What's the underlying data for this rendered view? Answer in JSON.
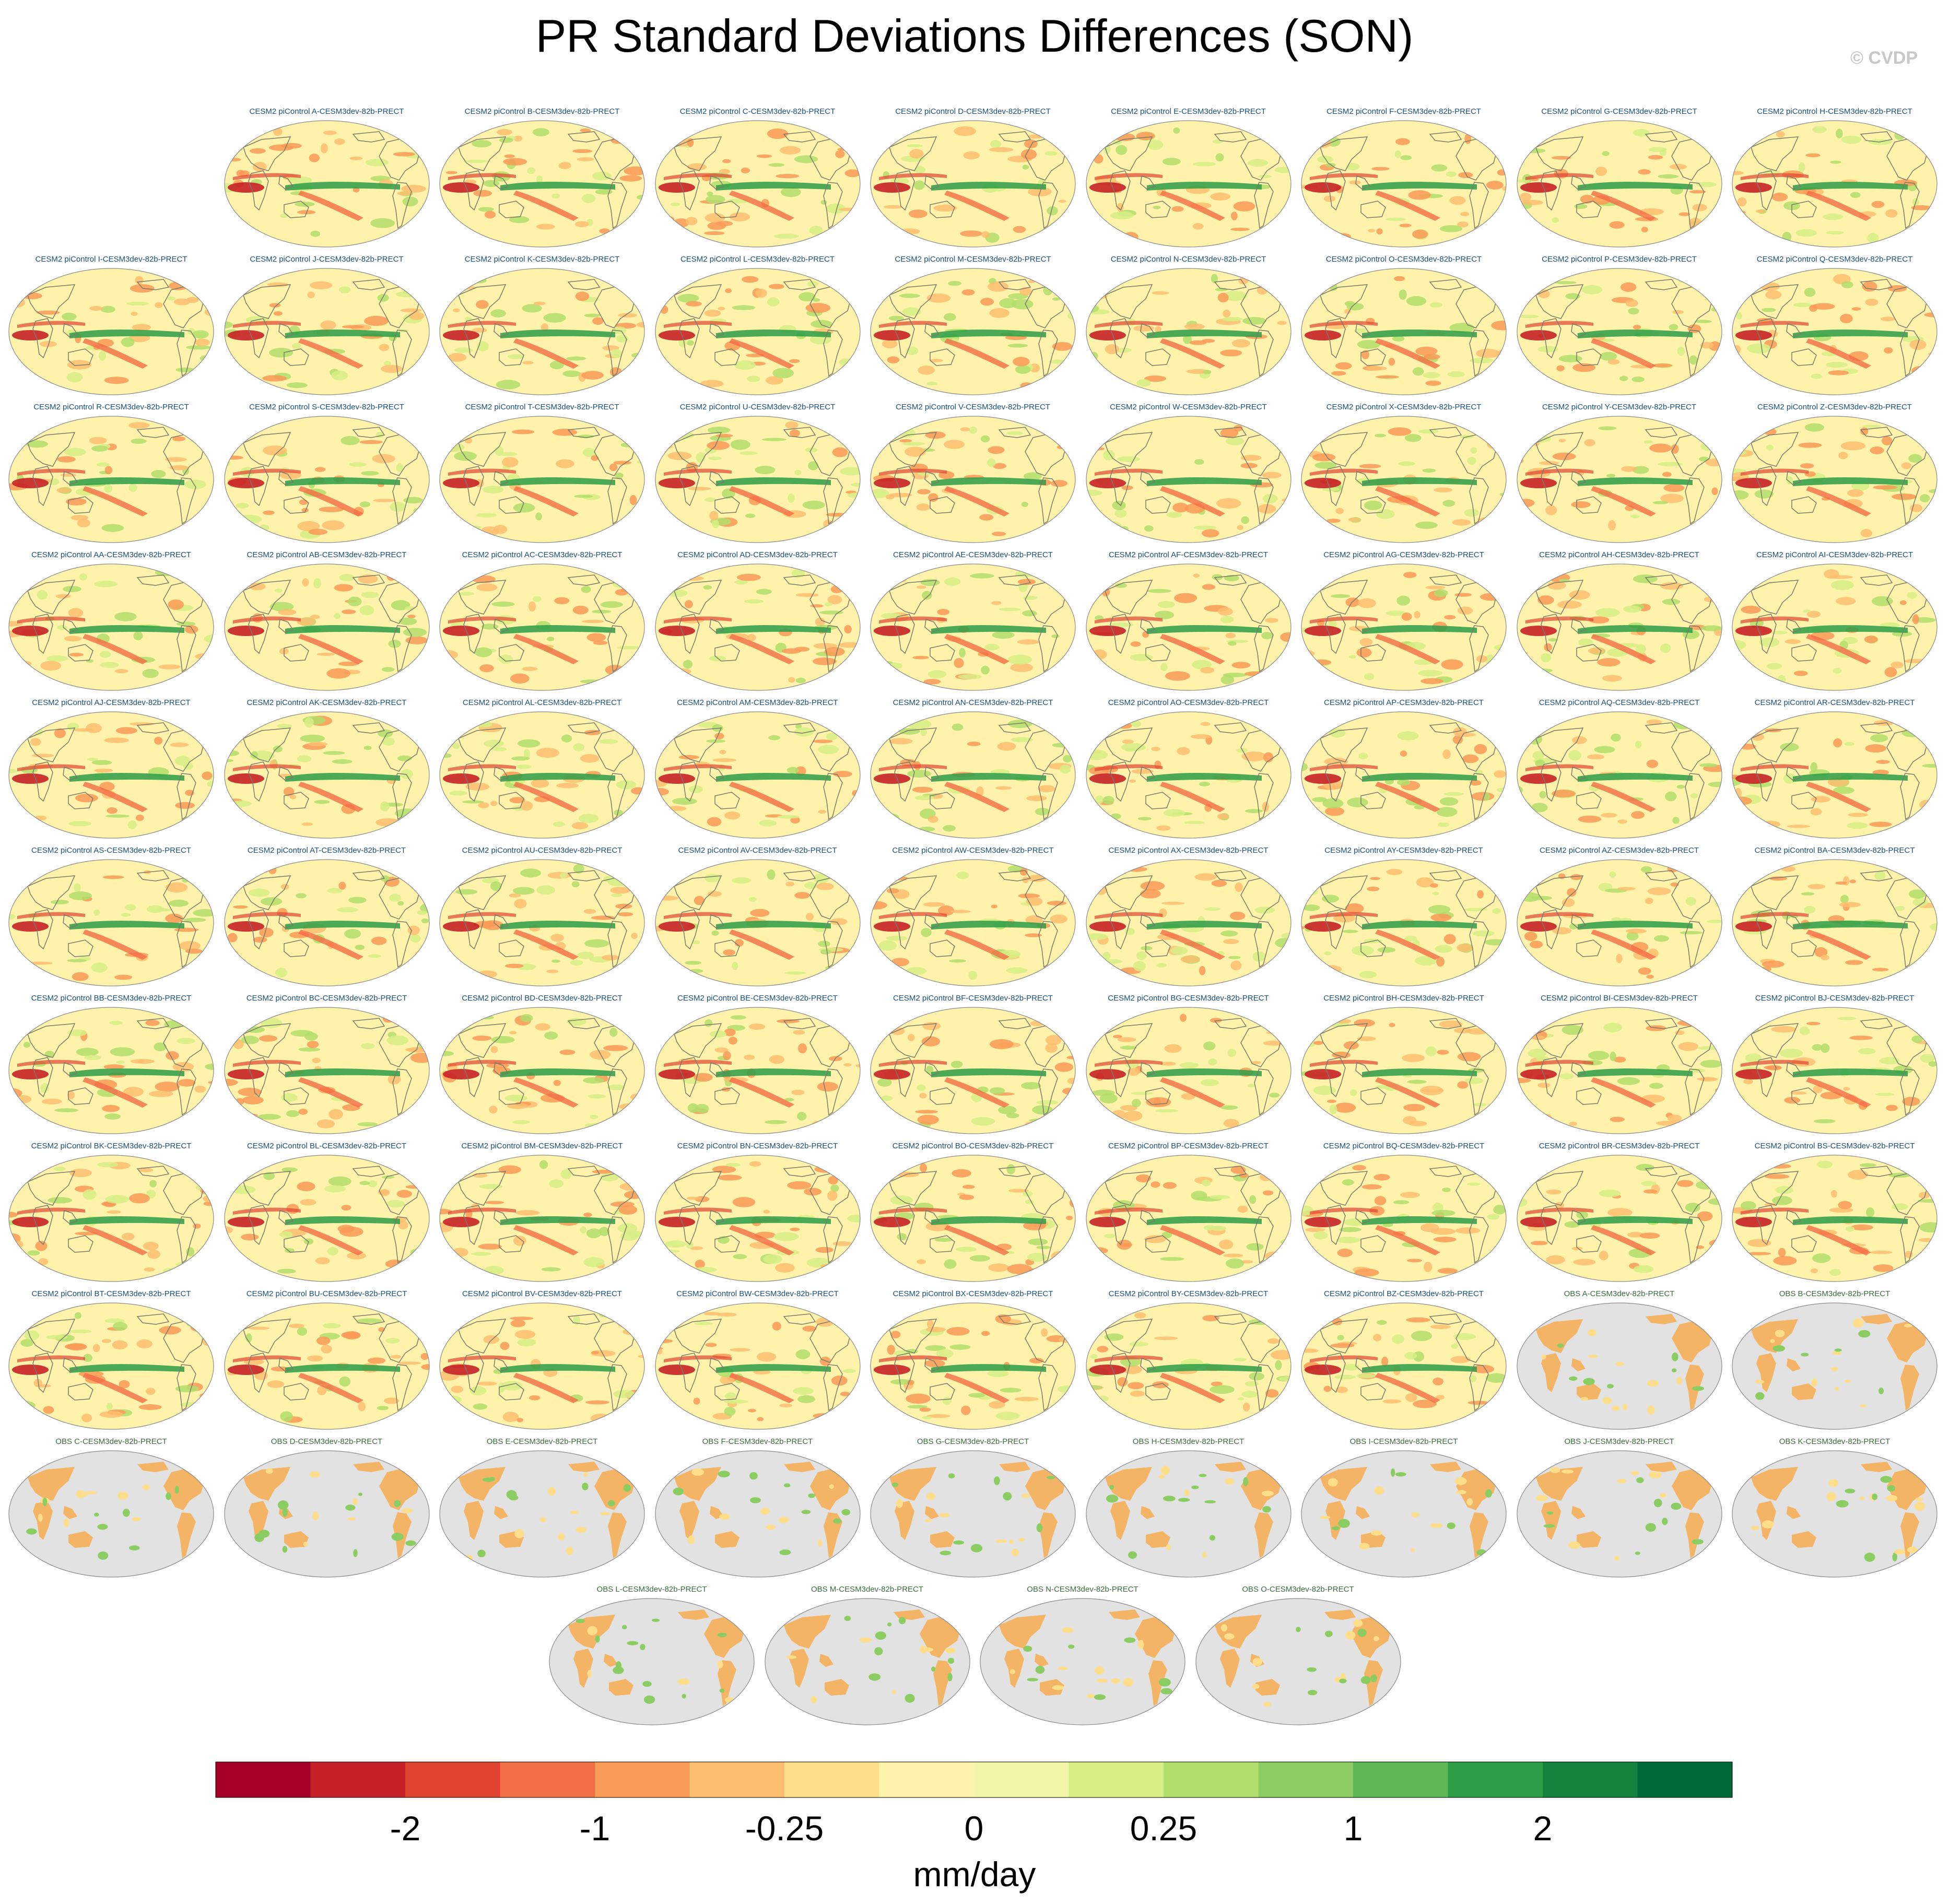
{
  "title": "PR Standard Deviations Differences (SON)",
  "watermark": "© CVDP",
  "chart_data": {
    "type": "heatmap",
    "title": "PR Standard Deviations Differences (SON)",
    "projection": "global map (Robinson-like), Pacific-centered",
    "variable": "PRECT",
    "season": "SON",
    "colorbar": {
      "units": "mm/day",
      "tick_labels": [
        "-2",
        "-1",
        "-0.25",
        "0",
        "0.25",
        "1",
        "2"
      ],
      "colors": [
        "#a50026",
        "#c62126",
        "#e04430",
        "#f26d45",
        "#f99a57",
        "#fdbe70",
        "#fede8a",
        "#fff2aa",
        "#f2f7a8",
        "#d7ee86",
        "#b2de6c",
        "#8bcd62",
        "#5db856",
        "#2d9d48",
        "#12823d",
        "#006837"
      ]
    },
    "panel_rows": [
      [
        "CESM2 piControl A-CESM3dev-82b-PRECT",
        "CESM2 piControl B-CESM3dev-82b-PRECT",
        "CESM2 piControl C-CESM3dev-82b-PRECT",
        "CESM2 piControl D-CESM3dev-82b-PRECT",
        "CESM2 piControl E-CESM3dev-82b-PRECT",
        "CESM2 piControl F-CESM3dev-82b-PRECT",
        "CESM2 piControl G-CESM3dev-82b-PRECT",
        "CESM2 piControl H-CESM3dev-82b-PRECT"
      ],
      [
        "CESM2 piControl I-CESM3dev-82b-PRECT",
        "CESM2 piControl J-CESM3dev-82b-PRECT",
        "CESM2 piControl K-CESM3dev-82b-PRECT",
        "CESM2 piControl L-CESM3dev-82b-PRECT",
        "CESM2 piControl M-CESM3dev-82b-PRECT",
        "CESM2 piControl N-CESM3dev-82b-PRECT",
        "CESM2 piControl O-CESM3dev-82b-PRECT",
        "CESM2 piControl P-CESM3dev-82b-PRECT",
        "CESM2 piControl Q-CESM3dev-82b-PRECT"
      ],
      [
        "CESM2 piControl R-CESM3dev-82b-PRECT",
        "CESM2 piControl S-CESM3dev-82b-PRECT",
        "CESM2 piControl T-CESM3dev-82b-PRECT",
        "CESM2 piControl U-CESM3dev-82b-PRECT",
        "CESM2 piControl V-CESM3dev-82b-PRECT",
        "CESM2 piControl W-CESM3dev-82b-PRECT",
        "CESM2 piControl X-CESM3dev-82b-PRECT",
        "CESM2 piControl Y-CESM3dev-82b-PRECT",
        "CESM2 piControl Z-CESM3dev-82b-PRECT"
      ],
      [
        "CESM2 piControl AA-CESM3dev-82b-PRECT",
        "CESM2 piControl AB-CESM3dev-82b-PRECT",
        "CESM2 piControl AC-CESM3dev-82b-PRECT",
        "CESM2 piControl AD-CESM3dev-82b-PRECT",
        "CESM2 piControl AE-CESM3dev-82b-PRECT",
        "CESM2 piControl AF-CESM3dev-82b-PRECT",
        "CESM2 piControl AG-CESM3dev-82b-PRECT",
        "CESM2 piControl AH-CESM3dev-82b-PRECT",
        "CESM2 piControl AI-CESM3dev-82b-PRECT"
      ],
      [
        "CESM2 piControl AJ-CESM3dev-82b-PRECT",
        "CESM2 piControl AK-CESM3dev-82b-PRECT",
        "CESM2 piControl AL-CESM3dev-82b-PRECT",
        "CESM2 piControl AM-CESM3dev-82b-PRECT",
        "CESM2 piControl AN-CESM3dev-82b-PRECT",
        "CESM2 piControl AO-CESM3dev-82b-PRECT",
        "CESM2 piControl AP-CESM3dev-82b-PRECT",
        "CESM2 piControl AQ-CESM3dev-82b-PRECT",
        "CESM2 piControl AR-CESM3dev-82b-PRECT"
      ],
      [
        "CESM2 piControl AS-CESM3dev-82b-PRECT",
        "CESM2 piControl AT-CESM3dev-82b-PRECT",
        "CESM2 piControl AU-CESM3dev-82b-PRECT",
        "CESM2 piControl AV-CESM3dev-82b-PRECT",
        "CESM2 piControl AW-CESM3dev-82b-PRECT",
        "CESM2 piControl AX-CESM3dev-82b-PRECT",
        "CESM2 piControl AY-CESM3dev-82b-PRECT",
        "CESM2 piControl AZ-CESM3dev-82b-PRECT",
        "CESM2 piControl BA-CESM3dev-82b-PRECT"
      ],
      [
        "CESM2 piControl BB-CESM3dev-82b-PRECT",
        "CESM2 piControl BC-CESM3dev-82b-PRECT",
        "CESM2 piControl BD-CESM3dev-82b-PRECT",
        "CESM2 piControl BE-CESM3dev-82b-PRECT",
        "CESM2 piControl BF-CESM3dev-82b-PRECT",
        "CESM2 piControl BG-CESM3dev-82b-PRECT",
        "CESM2 piControl BH-CESM3dev-82b-PRECT",
        "CESM2 piControl BI-CESM3dev-82b-PRECT",
        "CESM2 piControl BJ-CESM3dev-82b-PRECT"
      ],
      [
        "CESM2 piControl BK-CESM3dev-82b-PRECT",
        "CESM2 piControl BL-CESM3dev-82b-PRECT",
        "CESM2 piControl BM-CESM3dev-82b-PRECT",
        "CESM2 piControl BN-CESM3dev-82b-PRECT",
        "CESM2 piControl BO-CESM3dev-82b-PRECT",
        "CESM2 piControl BP-CESM3dev-82b-PRECT",
        "CESM2 piControl BQ-CESM3dev-82b-PRECT",
        "CESM2 piControl BR-CESM3dev-82b-PRECT",
        "CESM2 piControl BS-CESM3dev-82b-PRECT"
      ],
      [
        "CESM2 piControl BT-CESM3dev-82b-PRECT",
        "CESM2 piControl BU-CESM3dev-82b-PRECT",
        "CESM2 piControl BV-CESM3dev-82b-PRECT",
        "CESM2 piControl BW-CESM3dev-82b-PRECT",
        "CESM2 piControl BX-CESM3dev-82b-PRECT",
        "CESM2 piControl BY-CESM3dev-82b-PRECT",
        "CESM2 piControl BZ-CESM3dev-82b-PRECT",
        "OBS A-CESM3dev-82b-PRECT",
        "OBS B-CESM3dev-82b-PRECT"
      ],
      [
        "OBS C-CESM3dev-82b-PRECT",
        "OBS D-CESM3dev-82b-PRECT",
        "OBS E-CESM3dev-82b-PRECT",
        "OBS F-CESM3dev-82b-PRECT",
        "OBS G-CESM3dev-82b-PRECT",
        "OBS H-CESM3dev-82b-PRECT",
        "OBS I-CESM3dev-82b-PRECT",
        "OBS J-CESM3dev-82b-PRECT",
        "OBS K-CESM3dev-82b-PRECT"
      ],
      [
        "OBS L-CESM3dev-82b-PRECT",
        "OBS M-CESM3dev-82b-PRECT",
        "OBS N-CESM3dev-82b-PRECT",
        "OBS O-CESM3dev-82b-PRECT"
      ]
    ]
  }
}
